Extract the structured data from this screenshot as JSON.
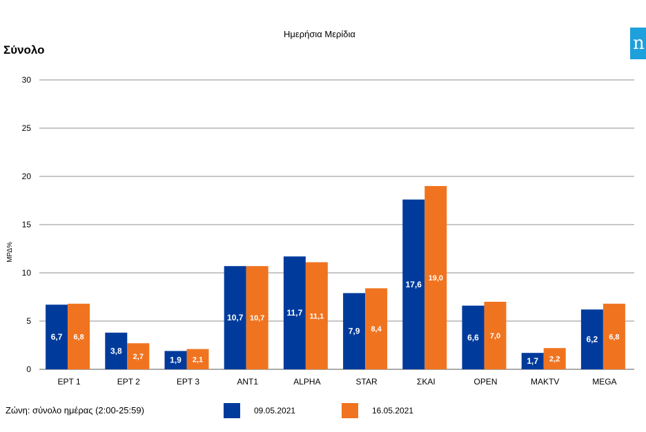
{
  "page": {
    "section_title": "Σύνολο",
    "logo_text": "n",
    "logo_color": "#1ea0dc",
    "footer_zone": "Ζώνη: σύνολο ημέρας (2:00-25:59)"
  },
  "chart_data": {
    "type": "bar",
    "title": "Ημερήσια Μερίδια",
    "xlabel": "",
    "ylabel": "ΜΡΔ%",
    "ylim": [
      0,
      30
    ],
    "yticks": [
      "0",
      "5",
      "10",
      "15",
      "20",
      "25",
      "30"
    ],
    "grid": true,
    "legend_position": "bottom",
    "categories": [
      "ΕΡΤ 1",
      "ΕΡΤ 2",
      "ΕΡΤ 3",
      "ANT1",
      "ALPHA",
      "STAR",
      "ΣΚΑΙ",
      "OPEN",
      "ΜΑΚΤV",
      "MEGA"
    ],
    "series": [
      {
        "name": "09.05.2021",
        "color": "#003b9c",
        "values": [
          6.7,
          3.8,
          1.9,
          10.7,
          11.7,
          7.9,
          17.6,
          6.6,
          1.7,
          6.2
        ],
        "labels": [
          "6,7",
          "3,8",
          "1,9",
          "10,7",
          "11,7",
          "7,9",
          "17,6",
          "6,6",
          "1,7",
          "6,2"
        ]
      },
      {
        "name": "16.05.2021",
        "color": "#f07420",
        "values": [
          6.8,
          2.7,
          2.1,
          10.7,
          11.1,
          8.4,
          19.0,
          7.0,
          2.2,
          6.8
        ],
        "labels": [
          "6,8",
          "2,7",
          "2,1",
          "10,7",
          "11,1",
          "8,4",
          "19,0",
          "7,0",
          "2,2",
          "6,8"
        ]
      }
    ]
  }
}
